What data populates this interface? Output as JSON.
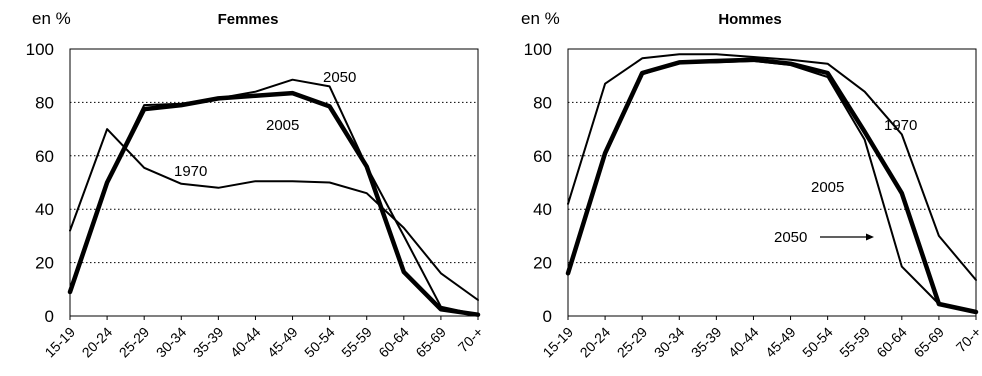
{
  "chart_data": [
    {
      "type": "line",
      "title": "Femmes",
      "ylabel": "en %",
      "ylim": [
        0,
        100
      ],
      "yticks": [
        0,
        20,
        40,
        60,
        80,
        100
      ],
      "grid": "horizontal dotted",
      "categories": [
        "15-19",
        "20-24",
        "25-29",
        "30-34",
        "35-39",
        "40-44",
        "45-49",
        "50-54",
        "55-59",
        "60-64",
        "65-69",
        "70-+"
      ],
      "series": [
        {
          "name": "1970",
          "values": [
            32,
            70,
            55.5,
            49.5,
            48,
            50.5,
            50.5,
            50,
            46,
            33,
            16,
            6
          ]
        },
        {
          "name": "2005",
          "values": [
            9,
            50,
            77.5,
            79,
            81.5,
            82.5,
            83.5,
            78.5,
            56,
            16.5,
            2.5,
            0.5
          ]
        },
        {
          "name": "2050",
          "values": [
            10,
            50.5,
            79,
            79.5,
            81.5,
            84,
            88.5,
            86,
            56,
            30,
            3.5,
            0.5
          ]
        }
      ],
      "annotations": [
        "2050",
        "2005",
        "1970"
      ]
    },
    {
      "type": "line",
      "title": "Hommes",
      "ylabel": "en %",
      "ylim": [
        0,
        100
      ],
      "yticks": [
        0,
        20,
        40,
        60,
        80,
        100
      ],
      "grid": "horizontal dotted",
      "categories": [
        "15-19",
        "20-24",
        "25-29",
        "30-34",
        "35-39",
        "40-44",
        "45-49",
        "50-54",
        "55-59",
        "60-64",
        "65-69",
        "70-+"
      ],
      "series": [
        {
          "name": "1970",
          "values": [
            42,
            87,
            96.5,
            98,
            98,
            97,
            96,
            94.5,
            84,
            68,
            30,
            13.5
          ]
        },
        {
          "name": "2005",
          "values": [
            16,
            61,
            91,
            95,
            95.5,
            96,
            94.5,
            91,
            69,
            46,
            4.5,
            1.5
          ]
        },
        {
          "name": "2050",
          "values": [
            16,
            60,
            90.5,
            95,
            95,
            95.5,
            94,
            89.5,
            66,
            18.5,
            4.5,
            1.5
          ]
        }
      ],
      "annotations": [
        "1970",
        "2005",
        "2050"
      ]
    }
  ]
}
